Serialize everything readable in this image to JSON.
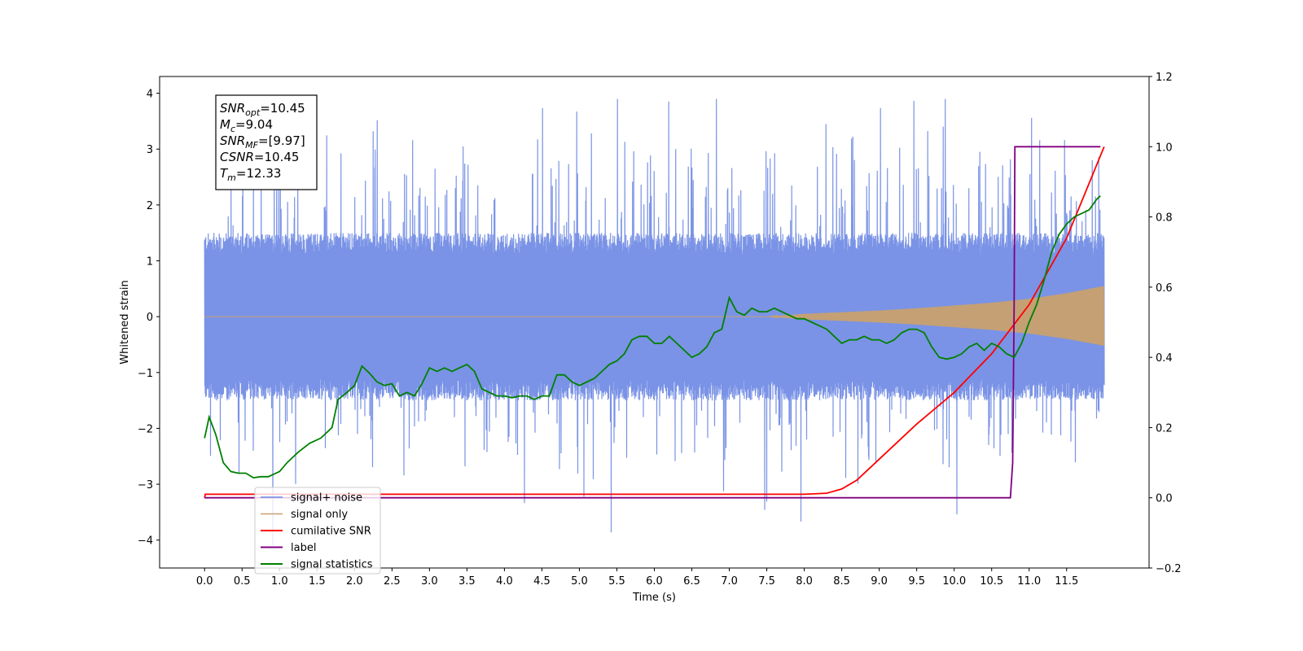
{
  "chart_data": {
    "type": "line",
    "title": "",
    "xlabel": "Time (s)",
    "ylabel": "Whitened strain",
    "xlim": [
      -0.6,
      12.6
    ],
    "ylim": [
      -4.5,
      4.3
    ],
    "y2lim": [
      -0.2,
      1.2
    ],
    "x_ticks": [
      0.0,
      0.5,
      1.0,
      1.5,
      2.0,
      2.5,
      3.0,
      3.5,
      4.0,
      4.5,
      5.0,
      5.5,
      6.0,
      6.5,
      7.0,
      7.5,
      8.0,
      8.5,
      9.0,
      9.5,
      10.0,
      10.5,
      11.0,
      11.5
    ],
    "x_tick_labels": [
      "0.0",
      "0.5",
      "1.0",
      "1.5",
      "2.0",
      "2.5",
      "3.0",
      "3.5",
      "4.0",
      "4.5",
      "5.0",
      "5.5",
      "6.0",
      "6.5",
      "7.0",
      "7.5",
      "8.0",
      "8.5",
      "9.0",
      "9.5",
      "10.0",
      "10.5",
      "11.0",
      "11.5"
    ],
    "y_ticks": [
      4,
      3,
      2,
      1,
      0,
      -1,
      -2,
      -3,
      -4
    ],
    "y_tick_labels": [
      "4",
      "3",
      "2",
      "1",
      "0",
      "−1",
      "−2",
      "−3",
      "−4"
    ],
    "y2_ticks": [
      1.2,
      1.0,
      0.8,
      0.6,
      0.4,
      0.2,
      0.0,
      -0.2
    ],
    "y2_tick_labels": [
      "1.2",
      "1.0",
      "0.8",
      "0.6",
      "0.4",
      "0.2",
      "0.0",
      "−0.2"
    ],
    "grid": false,
    "legend_position": "lower-left",
    "annotation": {
      "lines": [
        {
          "sym": "SNR",
          "sub": "opt",
          "val": "=10.45"
        },
        {
          "sym": "M",
          "sub": "c",
          "val": "=9.04"
        },
        {
          "sym": "SNR",
          "sub": "MF",
          "val": "=[9.97]"
        },
        {
          "sym": "CSNR",
          "sub": "",
          "val": "=10.45"
        },
        {
          "sym": "T",
          "sub": "m",
          "val": "=12.33"
        }
      ]
    },
    "series": [
      {
        "name": "signal+ noise",
        "color": "#6b87e3",
        "axis": "left",
        "kind": "noise",
        "x_range": [
          0.0,
          12.0
        ],
        "envelope": [
          -1.5,
          1.5
        ],
        "peak_max": 3.9,
        "peak_min": -4.1
      },
      {
        "name": "signal only",
        "color": "#c8a06e",
        "axis": "left",
        "kind": "chirp",
        "x": [
          0.0,
          7.5,
          8.0,
          8.5,
          9.0,
          9.5,
          10.0,
          10.5,
          11.0,
          11.5,
          12.0
        ],
        "amplitude": [
          0.0,
          0.0,
          0.05,
          0.08,
          0.11,
          0.15,
          0.2,
          0.25,
          0.32,
          0.42,
          0.55
        ]
      },
      {
        "name": "cumilative SNR",
        "color": "#ff0000",
        "axis": "right",
        "x": [
          0.0,
          0.01,
          8.0,
          8.3,
          8.5,
          8.7,
          9.0,
          9.5,
          10.0,
          10.5,
          11.0,
          11.5,
          12.0
        ],
        "values": [
          0.0,
          0.01,
          0.01,
          0.013,
          0.025,
          0.05,
          0.11,
          0.21,
          0.3,
          0.41,
          0.55,
          0.74,
          1.0
        ]
      },
      {
        "name": "label",
        "color": "#800080",
        "axis": "right",
        "x": [
          0.0,
          10.75,
          10.78,
          10.8,
          10.81,
          11.0,
          11.95
        ],
        "values": [
          0.0,
          0.0,
          0.1,
          0.55,
          1.0,
          1.0,
          1.0
        ]
      },
      {
        "name": "signal statistics",
        "color": "#008000",
        "axis": "right",
        "x": [
          0.0,
          0.06,
          0.15,
          0.25,
          0.35,
          0.45,
          0.55,
          0.65,
          0.75,
          0.85,
          1.0,
          1.1,
          1.25,
          1.4,
          1.55,
          1.7,
          1.78,
          1.9,
          2.0,
          2.1,
          2.2,
          2.3,
          2.4,
          2.5,
          2.6,
          2.7,
          2.8,
          2.9,
          3.0,
          3.1,
          3.2,
          3.3,
          3.4,
          3.5,
          3.6,
          3.7,
          3.8,
          3.9,
          4.0,
          4.1,
          4.2,
          4.3,
          4.4,
          4.5,
          4.6,
          4.7,
          4.8,
          4.9,
          5.0,
          5.1,
          5.2,
          5.3,
          5.4,
          5.5,
          5.6,
          5.7,
          5.8,
          5.9,
          6.0,
          6.1,
          6.2,
          6.3,
          6.4,
          6.5,
          6.6,
          6.7,
          6.8,
          6.9,
          7.0,
          7.1,
          7.2,
          7.3,
          7.4,
          7.5,
          7.6,
          7.7,
          7.8,
          7.9,
          8.0,
          8.1,
          8.2,
          8.3,
          8.4,
          8.5,
          8.6,
          8.7,
          8.8,
          8.9,
          9.0,
          9.1,
          9.2,
          9.3,
          9.4,
          9.5,
          9.6,
          9.7,
          9.8,
          9.9,
          10.0,
          10.1,
          10.2,
          10.3,
          10.4,
          10.5,
          10.6,
          10.7,
          10.8,
          10.9,
          11.0,
          11.1,
          11.2,
          11.3,
          11.4,
          11.5,
          11.6,
          11.7,
          11.8,
          11.9,
          11.95
        ],
        "values": [
          0.17,
          0.23,
          0.18,
          0.1,
          0.075,
          0.07,
          0.07,
          0.057,
          0.06,
          0.06,
          0.075,
          0.1,
          0.13,
          0.155,
          0.17,
          0.2,
          0.28,
          0.3,
          0.32,
          0.375,
          0.355,
          0.33,
          0.32,
          0.325,
          0.29,
          0.3,
          0.29,
          0.325,
          0.37,
          0.36,
          0.37,
          0.36,
          0.37,
          0.38,
          0.36,
          0.31,
          0.3,
          0.29,
          0.29,
          0.285,
          0.29,
          0.29,
          0.28,
          0.29,
          0.29,
          0.35,
          0.35,
          0.33,
          0.32,
          0.33,
          0.34,
          0.36,
          0.38,
          0.39,
          0.41,
          0.45,
          0.46,
          0.46,
          0.44,
          0.44,
          0.46,
          0.44,
          0.42,
          0.4,
          0.41,
          0.43,
          0.47,
          0.48,
          0.57,
          0.53,
          0.52,
          0.54,
          0.53,
          0.53,
          0.54,
          0.53,
          0.52,
          0.51,
          0.51,
          0.5,
          0.49,
          0.48,
          0.46,
          0.44,
          0.45,
          0.45,
          0.46,
          0.45,
          0.45,
          0.44,
          0.45,
          0.47,
          0.48,
          0.48,
          0.47,
          0.43,
          0.4,
          0.395,
          0.4,
          0.41,
          0.43,
          0.44,
          0.42,
          0.44,
          0.43,
          0.41,
          0.4,
          0.44,
          0.5,
          0.55,
          0.62,
          0.7,
          0.75,
          0.78,
          0.8,
          0.81,
          0.82,
          0.85,
          0.86
        ]
      }
    ]
  }
}
